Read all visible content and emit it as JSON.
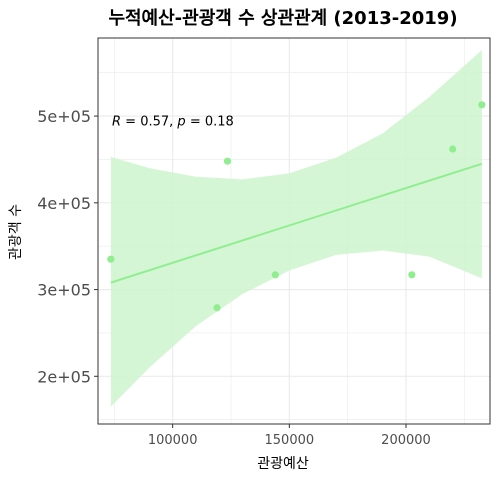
{
  "chart_data": {
    "type": "scatter",
    "title": "누적예산-관광객 수 상관관계 (2013-2019)",
    "xlabel": "관광예산",
    "ylabel": "관광객 수",
    "xlim": [
      68000,
      236000
    ],
    "ylim": [
      145000,
      590000
    ],
    "x_ticks": [
      100000,
      150000,
      200000
    ],
    "x_tick_labels": [
      "100000",
      "150000",
      "200000"
    ],
    "y_ticks": [
      200000,
      300000,
      400000,
      500000
    ],
    "y_tick_labels": [
      "2e+05",
      "3e+05",
      "4e+05",
      "5e+05"
    ],
    "grid": true,
    "points": [
      {
        "x": 73500,
        "y": 335000
      },
      {
        "x": 119000,
        "y": 279000
      },
      {
        "x": 123500,
        "y": 448000
      },
      {
        "x": 144000,
        "y": 317000
      },
      {
        "x": 202500,
        "y": 317000
      },
      {
        "x": 220000,
        "y": 462000
      },
      {
        "x": 232500,
        "y": 513000
      }
    ],
    "regression": {
      "x_range": [
        73500,
        232500
      ],
      "y_start": 308000,
      "y_end": 445000
    },
    "confidence_band": [
      {
        "x": 73500,
        "lower": 165000,
        "upper": 453000
      },
      {
        "x": 90000,
        "lower": 210000,
        "upper": 440000
      },
      {
        "x": 110000,
        "lower": 258000,
        "upper": 430000
      },
      {
        "x": 130000,
        "lower": 295000,
        "upper": 427000
      },
      {
        "x": 150000,
        "lower": 322000,
        "upper": 434000
      },
      {
        "x": 170000,
        "lower": 340000,
        "upper": 452000
      },
      {
        "x": 190000,
        "lower": 345000,
        "upper": 480000
      },
      {
        "x": 210000,
        "lower": 338000,
        "upper": 522000
      },
      {
        "x": 232500,
        "lower": 313000,
        "upper": 576000
      }
    ],
    "annotation": {
      "r_symbol": "R",
      "r_text": " = 0.57, ",
      "p_symbol": "p",
      "p_text": " = 0.18",
      "x": 74000,
      "y": 495000
    },
    "colors": {
      "point": "#90EE90",
      "line": "#90EE90",
      "band": "#CCF5CC",
      "grid": "#EBEBEB",
      "panel_border": "#333333"
    }
  }
}
